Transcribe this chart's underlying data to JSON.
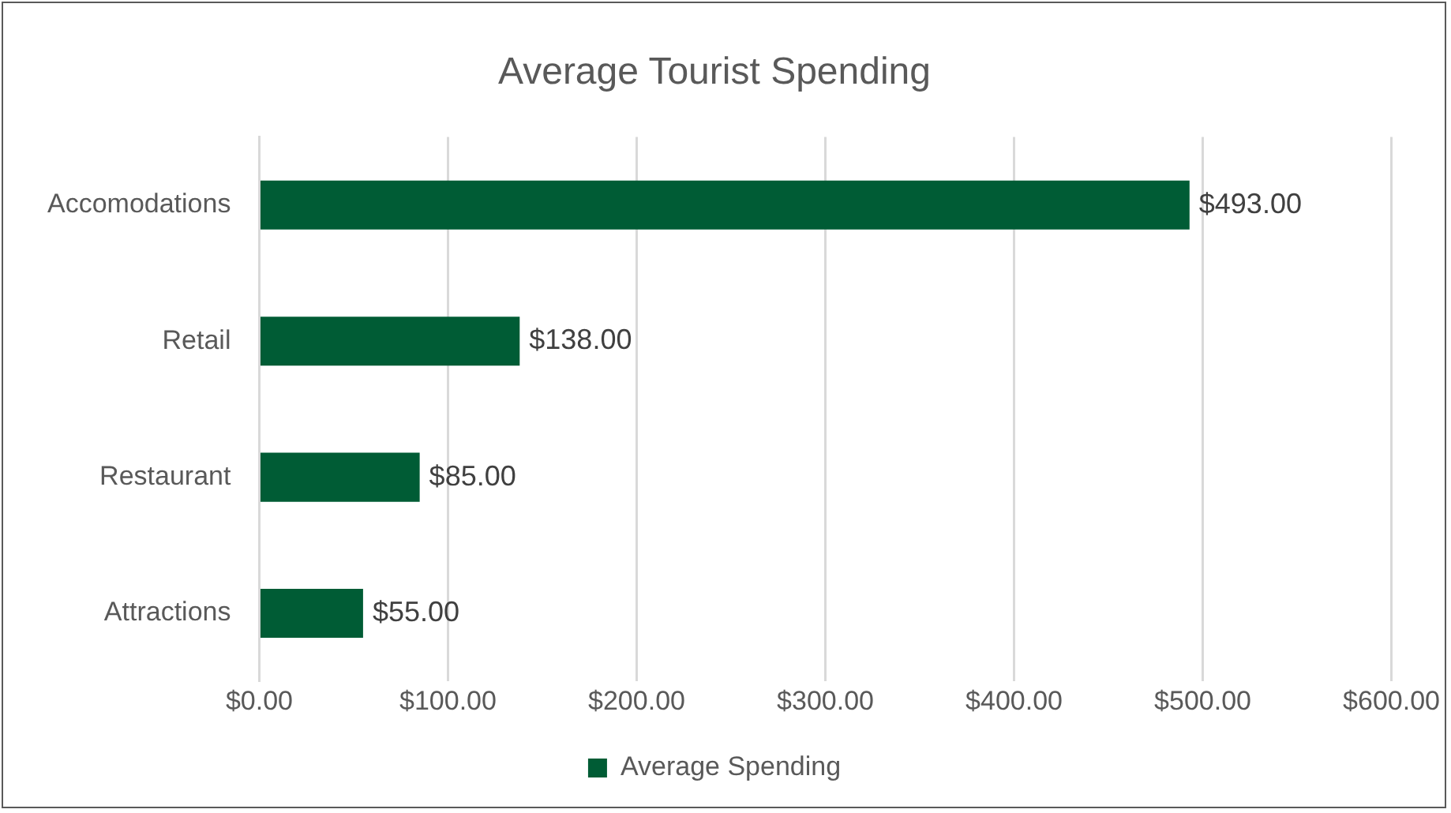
{
  "chart_data": {
    "type": "bar",
    "orientation": "horizontal",
    "title": "Average Tourist Spending",
    "categories": [
      "Accomodations",
      "Retail",
      "Restaurant",
      "Attractions"
    ],
    "series": [
      {
        "name": "Average Spending",
        "color": "#005c35",
        "values": [
          493,
          138,
          85,
          55
        ],
        "value_labels": [
          "$493.00",
          "$138.00",
          "$85.00",
          "$55.00"
        ]
      }
    ],
    "xlim": [
      0,
      600
    ],
    "xticks": [
      {
        "value": 0,
        "label": "$0.00"
      },
      {
        "value": 100,
        "label": "$100.00"
      },
      {
        "value": 200,
        "label": "$200.00"
      },
      {
        "value": 300,
        "label": "$300.00"
      },
      {
        "value": 400,
        "label": "$400.00"
      },
      {
        "value": 500,
        "label": "$500.00"
      },
      {
        "value": 600,
        "label": "$600.00"
      }
    ],
    "grid": "x",
    "legend": "bottom"
  }
}
